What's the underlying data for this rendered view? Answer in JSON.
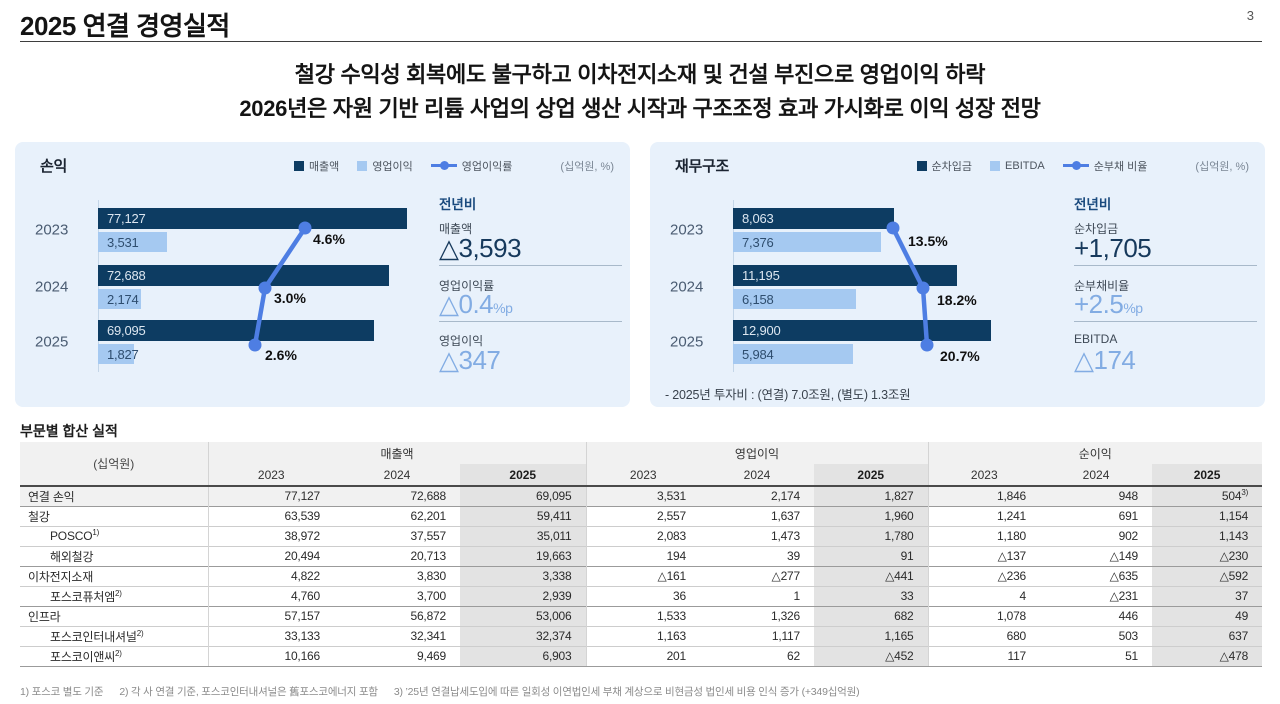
{
  "page": {
    "title": "2025 연결 경영실적",
    "page_number": "3",
    "headline_line1": "철강 수익성 회복에도 불구하고 이차전지소재 및 건설 부진으로 영업이익 하락",
    "headline_line2": "2026년은 자원 기반 리튬 사업의 상업 생산 시작과 구조조정 효과 가시화로 이익 성장 전망"
  },
  "profit_panel": {
    "title": "손익",
    "units": "(십억원, %)",
    "yoy_header": "전년비",
    "yoy": [
      {
        "label": "매출액",
        "value": "△3,593",
        "suffix": ""
      },
      {
        "label": "영업이익률",
        "value": "△0.4",
        "suffix": "%p"
      },
      {
        "label": "영업이익",
        "value": "△347",
        "suffix": ""
      }
    ]
  },
  "finance_panel": {
    "title": "재무구조",
    "units": "(십억원, %)",
    "yoy_header": "전년비",
    "yoy": [
      {
        "label": "순차입금",
        "value": "+1,705",
        "suffix": ""
      },
      {
        "label": "순부채비율",
        "value": "+2.5",
        "suffix": "%p"
      },
      {
        "label": "EBITDA",
        "value": "△174",
        "suffix": ""
      }
    ],
    "note": "- 2025년 투자비 : (연결) 7.0조원, (별도) 1.3조원"
  },
  "chart_data": [
    {
      "type": "bar",
      "title": "손익",
      "unit": "십억원, %",
      "orientation": "horizontal",
      "legend_position": "top",
      "categories": [
        "2023",
        "2024",
        "2025"
      ],
      "series": [
        {
          "name": "매출액",
          "type": "bar",
          "color": "#0D3C62",
          "values": [
            77127,
            72688,
            69095
          ]
        },
        {
          "name": "영업이익",
          "type": "bar",
          "color": "#A5C9F1",
          "values": [
            3531,
            2174,
            1827
          ]
        },
        {
          "name": "영업이익률",
          "type": "line",
          "color": "#4E7EE3",
          "unit": "%",
          "values": [
            4.6,
            3.0,
            2.6
          ]
        }
      ]
    },
    {
      "type": "bar",
      "title": "재무구조",
      "unit": "십억원, %",
      "orientation": "horizontal",
      "legend_position": "top",
      "categories": [
        "2023",
        "2024",
        "2025"
      ],
      "series": [
        {
          "name": "순차입금",
          "type": "bar",
          "color": "#0D3C62",
          "values": [
            8063,
            11195,
            12900
          ]
        },
        {
          "name": "EBITDA",
          "type": "bar",
          "color": "#A5C9F1",
          "values": [
            7376,
            6158,
            5984
          ]
        },
        {
          "name": "순부채 비율",
          "type": "line",
          "color": "#4E7EE3",
          "unit": "%",
          "values": [
            13.5,
            18.2,
            20.7
          ]
        }
      ]
    }
  ],
  "table": {
    "title": "부문별 합산 실적",
    "unit_label": "(십억원)",
    "groups": [
      "매출액",
      "영업이익",
      "순이익"
    ],
    "years": [
      "2023",
      "2024",
      "2025"
    ],
    "rows": [
      {
        "label": "연결 손익",
        "values": [
          "77,127",
          "72,688",
          "69,095",
          "3,531",
          "2,174",
          "1,827",
          "1,846",
          "948",
          "504"
        ],
        "value_sup": "3)"
      },
      {
        "label": "철강",
        "values": [
          "63,539",
          "62,201",
          "59,411",
          "2,557",
          "1,637",
          "1,960",
          "1,241",
          "691",
          "1,154"
        ]
      },
      {
        "label": "POSCO",
        "sup": "1)",
        "values": [
          "38,972",
          "37,557",
          "35,011",
          "2,083",
          "1,473",
          "1,780",
          "1,180",
          "902",
          "1,143"
        ]
      },
      {
        "label": "해외철강",
        "values": [
          "20,494",
          "20,713",
          "19,663",
          "194",
          "39",
          "91",
          "△137",
          "△149",
          "△230"
        ]
      },
      {
        "label": "이차전지소재",
        "values": [
          "4,822",
          "3,830",
          "3,338",
          "△161",
          "△277",
          "△441",
          "△236",
          "△635",
          "△592"
        ]
      },
      {
        "label": "포스코퓨처엠",
        "sup": "2)",
        "values": [
          "4,760",
          "3,700",
          "2,939",
          "36",
          "1",
          "33",
          "4",
          "△231",
          "37"
        ]
      },
      {
        "label": "인프라",
        "values": [
          "57,157",
          "56,872",
          "53,006",
          "1,533",
          "1,326",
          "682",
          "1,078",
          "446",
          "49"
        ]
      },
      {
        "label": "포스코인터내셔널",
        "sup": "2)",
        "values": [
          "33,133",
          "32,341",
          "32,374",
          "1,163",
          "1,117",
          "1,165",
          "680",
          "503",
          "637"
        ]
      },
      {
        "label": "포스코이앤씨",
        "sup": "2)",
        "values": [
          "10,166",
          "9,469",
          "6,903",
          "201",
          "62",
          "△452",
          "117",
          "51",
          "△478"
        ]
      }
    ]
  },
  "footnotes": [
    "1) 포스코 별도 기준",
    "2) 각 사 연결 기준, 포스코인터내셔널은 舊포스코에너지 포함",
    "3) ’25년 연결납세도입에 따른 일회성 이연법인세 부채 계상으로 비현금성 법인세 비용 인식 증가 (+349십억원)"
  ]
}
